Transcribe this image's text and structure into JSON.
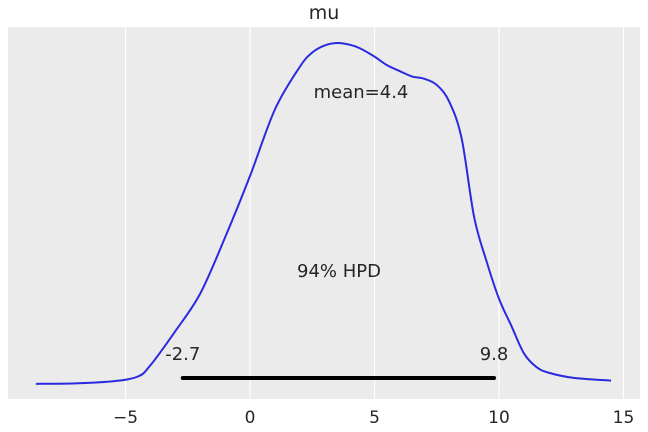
{
  "chart_data": {
    "type": "line",
    "title": "mu",
    "xlabel": "",
    "ylabel": "",
    "xlim": [
      -9.0,
      15.5
    ],
    "grid": true,
    "x_ticks": [
      -5,
      0,
      5,
      10,
      15
    ],
    "x_tick_labels": [
      "−5",
      "0",
      "5",
      "10",
      "15"
    ],
    "series": [
      {
        "color": "#2a2ae0",
        "x": [
          -8.6,
          -7.0,
          -5.5,
          -4.5,
          -4.0,
          -3.0,
          -2.0,
          -1.0,
          0.0,
          1.0,
          2.0,
          2.5,
          3.0,
          3.5,
          4.0,
          4.4,
          5.0,
          5.5,
          6.0,
          6.5,
          7.0,
          7.5,
          8.0,
          8.5,
          9.0,
          9.5,
          10.0,
          10.5,
          11.0,
          11.5,
          12.0,
          13.0,
          14.5
        ],
        "y": [
          0.0005,
          0.002,
          0.008,
          0.022,
          0.055,
          0.155,
          0.265,
          0.43,
          0.61,
          0.805,
          0.93,
          0.972,
          0.993,
          1.0,
          0.995,
          0.985,
          0.96,
          0.935,
          0.918,
          0.902,
          0.895,
          0.877,
          0.828,
          0.72,
          0.49,
          0.36,
          0.25,
          0.17,
          0.09,
          0.05,
          0.033,
          0.018,
          0.01
        ]
      }
    ],
    "annotations": {
      "mean_label": "mean=4.4",
      "hpd_label": "94% HPD",
      "hpd_low": -2.7,
      "hpd_high": 9.8,
      "hpd_low_label": "-2.7",
      "hpd_high_label": "9.8"
    },
    "colors": {
      "background": "#ebebeb",
      "grid": "#ffffff",
      "line": "#2a2ae0",
      "hpd_bar": "#000000"
    }
  }
}
